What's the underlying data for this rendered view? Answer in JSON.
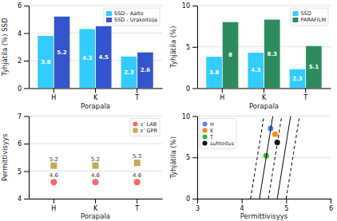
{
  "chart_data": [
    {
      "type": "bar",
      "xlabel": "Porapala",
      "ylabel": "Tyhjätila (%) SSD",
      "categories": [
        "H",
        "K",
        "T"
      ],
      "series": [
        {
          "name": "SSD - Aalto",
          "color": "#33ccff",
          "values": [
            3.8,
            4.3,
            2.3
          ]
        },
        {
          "name": "SSD - Urakoitsija",
          "color": "#3355cc",
          "values": [
            5.2,
            4.5,
            2.6
          ]
        }
      ],
      "ylim": [
        0,
        6
      ],
      "yticks": [
        0,
        2,
        4,
        6
      ],
      "grid": true,
      "legend": "upper right",
      "data_labels": true
    },
    {
      "type": "bar",
      "xlabel": "Porapala",
      "ylabel": "Tyhjätila (%)",
      "categories": [
        "H",
        "K",
        "T"
      ],
      "series": [
        {
          "name": "SSD",
          "color": "#33ccff",
          "values": [
            3.8,
            4.3,
            2.3
          ]
        },
        {
          "name": "PARAFILM",
          "color": "#2d8c5e",
          "values": [
            8.0,
            8.3,
            5.1
          ]
        }
      ],
      "ylim": [
        0,
        10
      ],
      "yticks": [
        0,
        5,
        10
      ],
      "grid": true,
      "legend": "upper right",
      "data_labels": true
    },
    {
      "type": "scatter",
      "xlabel": "Porapala",
      "ylabel": "Permittivisyys",
      "categories": [
        "H",
        "K",
        "T"
      ],
      "series": [
        {
          "name": "ε’ LAB",
          "color": "#ff6666",
          "marker": "circle",
          "values": [
            4.6,
            4.6,
            4.6
          ]
        },
        {
          "name": "ε’ GPR",
          "color": "#c8a850",
          "marker": "square",
          "values": [
            5.2,
            5.2,
            5.3
          ]
        }
      ],
      "ylim": [
        4,
        7
      ],
      "yticks": [
        4,
        5,
        6,
        7
      ],
      "grid": true,
      "legend": "upper right",
      "data_labels": true
    },
    {
      "type": "scatter",
      "xlabel": "Permittivisyys",
      "ylabel": "Tyhjätila (%)",
      "xlim": [
        3,
        6
      ],
      "xticks": [
        3,
        4,
        5,
        6
      ],
      "ylim": [
        0,
        10
      ],
      "yticks": [
        0,
        5,
        10
      ],
      "grid": true,
      "legend": "upper left",
      "series": [
        {
          "name": "H",
          "color": "#4488ff",
          "marker": "circle",
          "x": [
            4.65
          ],
          "values": [
            8.5
          ]
        },
        {
          "name": "K",
          "color": "#ff8800",
          "marker": "circle",
          "x": [
            4.75
          ],
          "values": [
            7.8
          ]
        },
        {
          "name": "T",
          "color": "#33bb33",
          "marker": "circle",
          "x": [
            4.55
          ],
          "values": [
            5.2
          ]
        },
        {
          "name": "suhteitus",
          "color": "#111111",
          "marker": "circle",
          "x": [
            4.8
          ],
          "values": [
            6.8
          ]
        },
        {
          "type": "line",
          "color": "black",
          "line_style": "dashed",
          "x": [
            4.2,
            4.5
          ],
          "values": [
            0,
            10
          ]
        },
        {
          "type": "line",
          "color": "black",
          "line_style": "solid",
          "x": [
            4.4,
            4.7
          ],
          "values": [
            0,
            10
          ]
        },
        {
          "type": "line",
          "color": "black",
          "line_style": "dashed",
          "x": [
            4.6,
            4.9
          ],
          "values": [
            0,
            10
          ]
        },
        {
          "type": "line",
          "color": "black",
          "line_style": "solid",
          "x": [
            4.8,
            5.1
          ],
          "values": [
            0,
            10
          ]
        },
        {
          "type": "line",
          "color": "black",
          "line_style": "dashed",
          "x": [
            5.0,
            5.3
          ],
          "values": [
            0,
            10
          ]
        }
      ]
    }
  ]
}
